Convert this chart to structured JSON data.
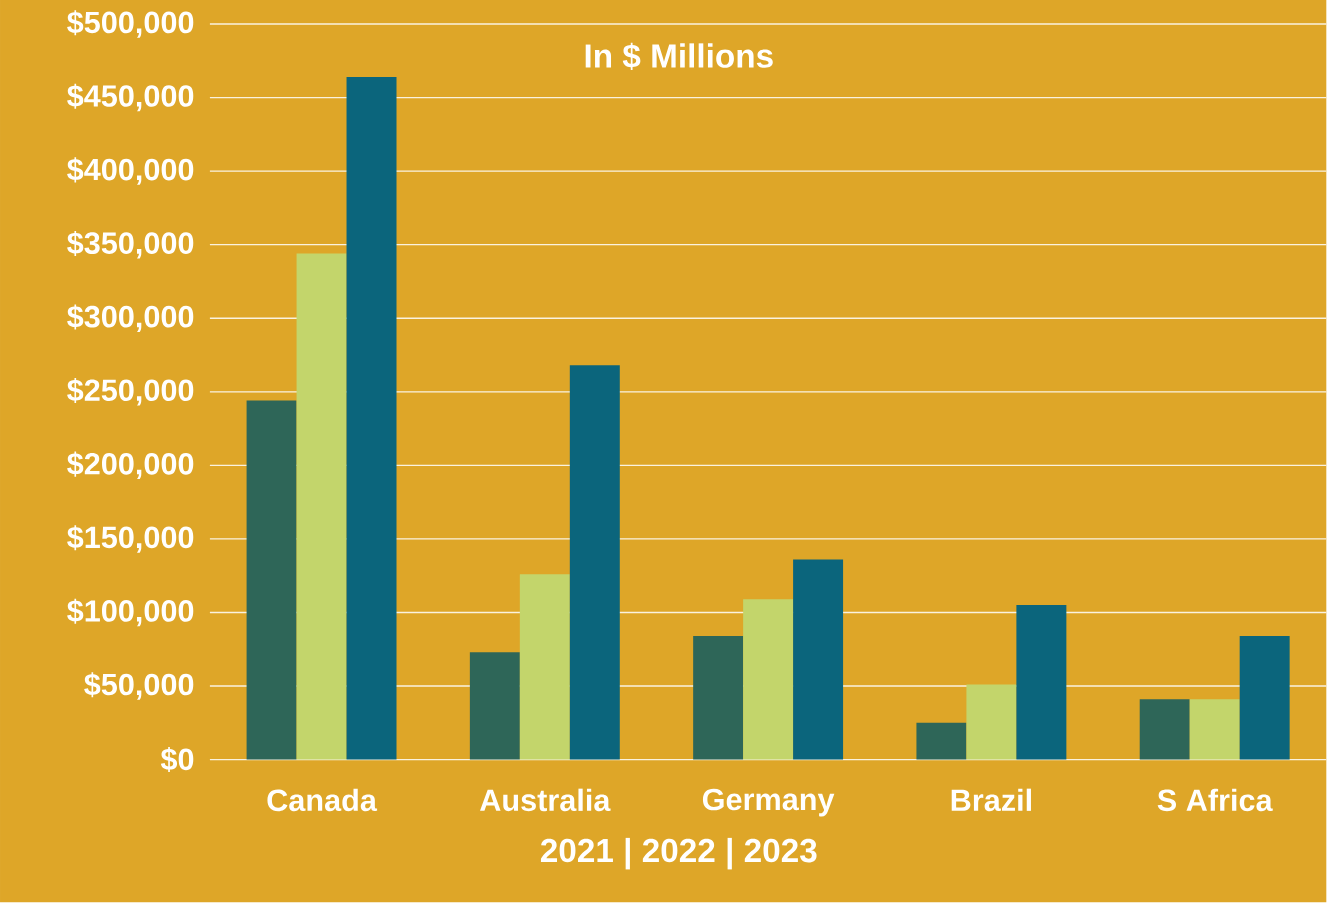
{
  "chart_data": {
    "type": "bar",
    "title": "In $ Millions",
    "xlabel": "2021 | 2022 | 2023",
    "categories": [
      "Canada",
      "Australia",
      "Germany",
      "Brazil",
      "S Africa"
    ],
    "series": [
      {
        "color": "#2e6658",
        "values": [
          244000,
          73000,
          84000,
          25000,
          41000
        ]
      },
      {
        "color": "#c3d56b",
        "values": [
          344000,
          126000,
          109000,
          51000,
          41000
        ]
      },
      {
        "color": "#0b657c",
        "values": [
          464000,
          268000,
          136000,
          105000,
          84000
        ]
      }
    ],
    "ylim": [
      0,
      500000
    ],
    "yticks": [
      {
        "value": 0,
        "label": "$0"
      },
      {
        "value": 50000,
        "label": "$50,000"
      },
      {
        "value": 100000,
        "label": "$100,000"
      },
      {
        "value": 150000,
        "label": "$150,000"
      },
      {
        "value": 200000,
        "label": "$200,000"
      },
      {
        "value": 250000,
        "label": "$250,000"
      },
      {
        "value": 300000,
        "label": "$300,000"
      },
      {
        "value": 350000,
        "label": "$350,000"
      },
      {
        "value": 400000,
        "label": "$400,000"
      },
      {
        "value": 450000,
        "label": "$450,000"
      },
      {
        "value": 500000,
        "label": "$500,000"
      }
    ],
    "grid": "y"
  }
}
